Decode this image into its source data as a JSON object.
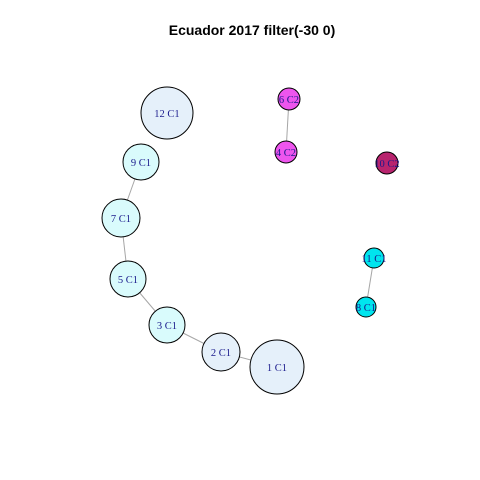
{
  "title": "Ecuador 2017 filter(-30 0)",
  "colors": {
    "C1_light": "#e5f0fa",
    "C1_cyan_light": "#d9fbfc",
    "C1_cyan": "#00e5ee",
    "C2_magenta": "#ee55ee",
    "C2_dark": "#b8246e",
    "edge": "#a6a6a6",
    "label": "#1a1a8c"
  },
  "nodes": [
    {
      "id": "12",
      "label": "12 C1",
      "color_key": "C1_light"
    },
    {
      "id": "9",
      "label": "9 C1",
      "color_key": "C1_cyan_light"
    },
    {
      "id": "7",
      "label": "7 C1",
      "color_key": "C1_cyan_light"
    },
    {
      "id": "5",
      "label": "5 C1",
      "color_key": "C1_cyan_light"
    },
    {
      "id": "3",
      "label": "3 C1",
      "color_key": "C1_cyan_light"
    },
    {
      "id": "2",
      "label": "2 C1",
      "color_key": "C1_light"
    },
    {
      "id": "1",
      "label": "1 C1",
      "color_key": "C1_light"
    },
    {
      "id": "6",
      "label": "6 C2",
      "color_key": "C2_magenta"
    },
    {
      "id": "4",
      "label": "4 C2",
      "color_key": "C2_magenta"
    },
    {
      "id": "10",
      "label": "10 C2",
      "color_key": "C2_dark"
    },
    {
      "id": "11",
      "label": "11 C1",
      "color_key": "C1_cyan"
    },
    {
      "id": "8",
      "label": "8 C1",
      "color_key": "C1_cyan"
    }
  ],
  "edges": [
    {
      "from": "9",
      "to": "7"
    },
    {
      "from": "7",
      "to": "5"
    },
    {
      "from": "5",
      "to": "3"
    },
    {
      "from": "3",
      "to": "2"
    },
    {
      "from": "2",
      "to": "1"
    },
    {
      "from": "6",
      "to": "4"
    },
    {
      "from": "11",
      "to": "8"
    }
  ]
}
